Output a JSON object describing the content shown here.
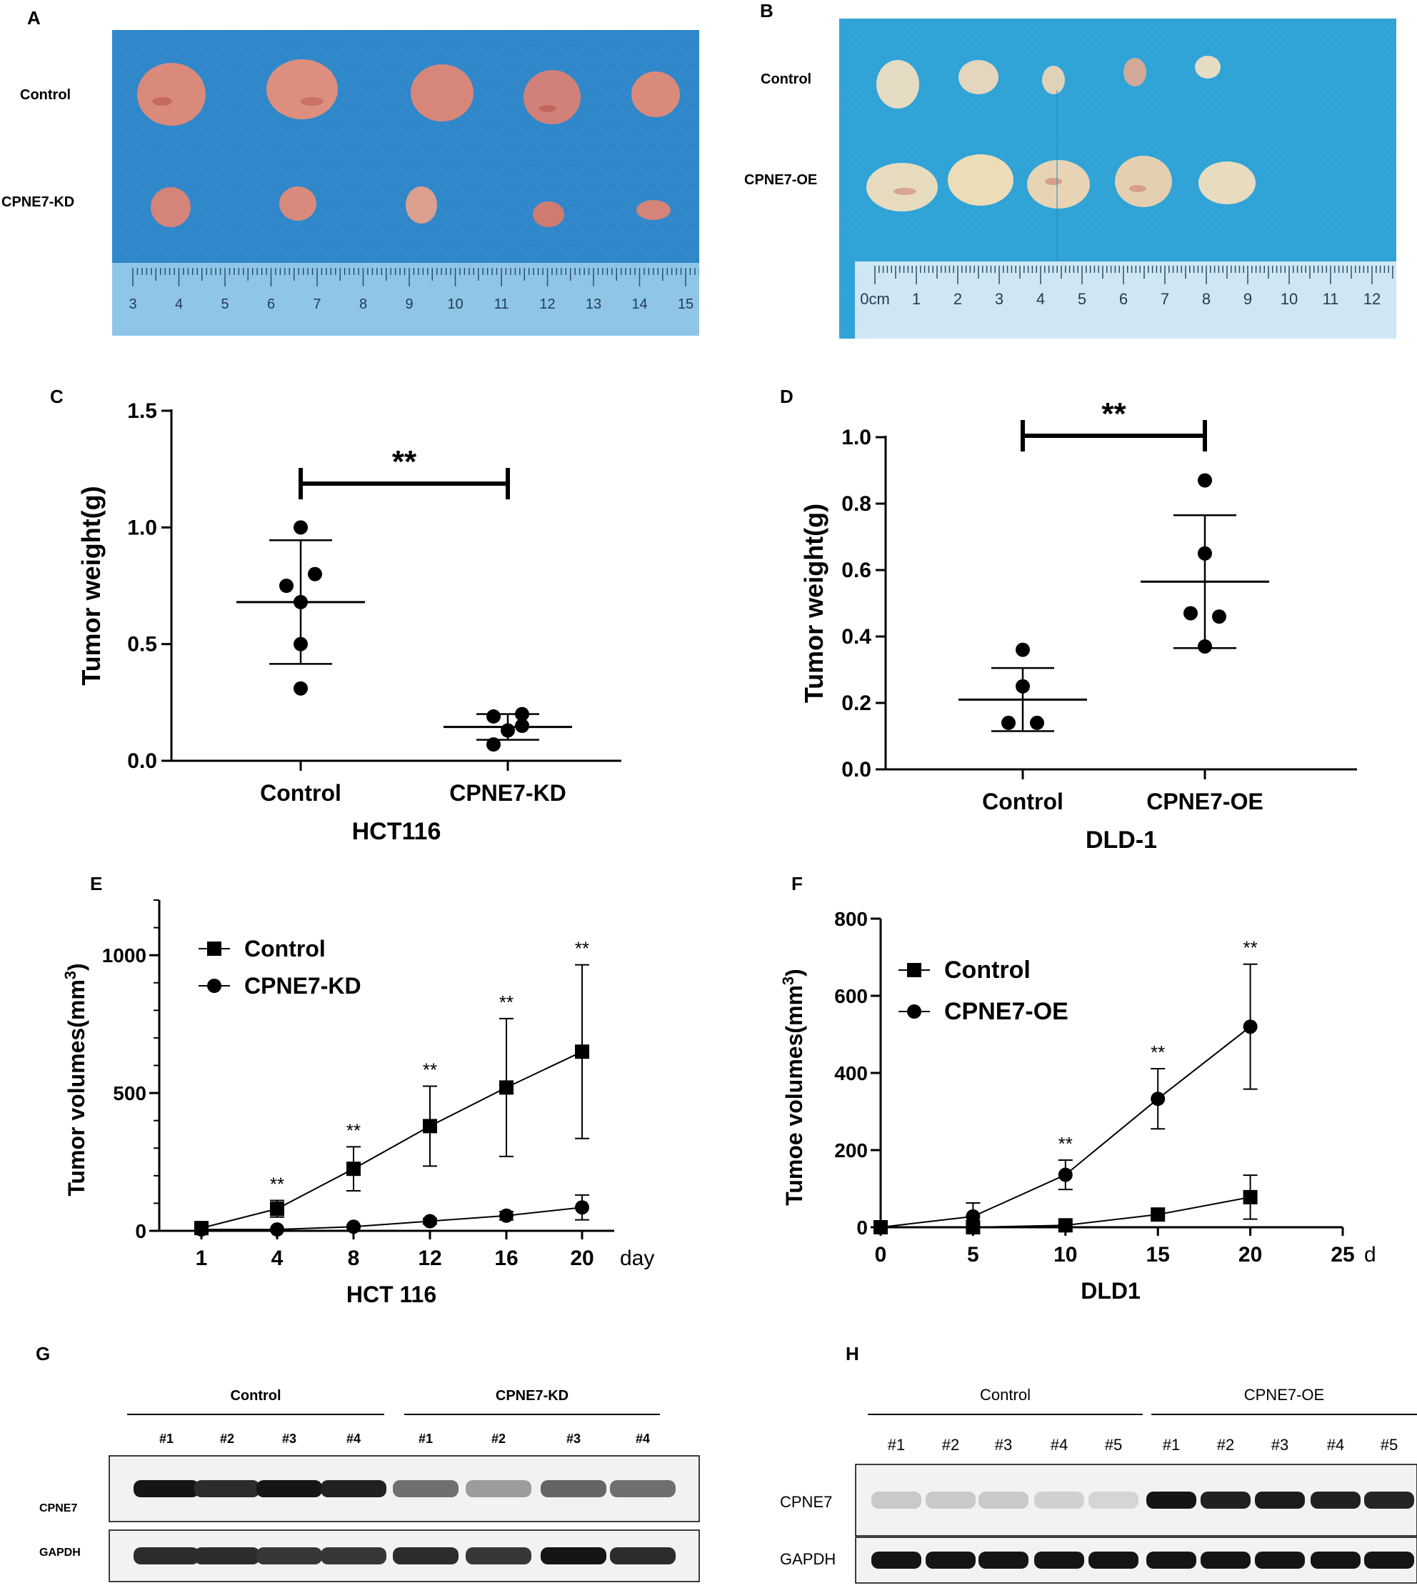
{
  "panels": {
    "A": {
      "label": "A",
      "rows": [
        "Control",
        "CPNE7-KD"
      ],
      "ruler_numbers": [
        "3",
        "4",
        "5",
        "6",
        "7",
        "8",
        "9",
        "10",
        "11",
        "12",
        "13",
        "14",
        "15"
      ],
      "colors": {
        "drape": "#2f86c8",
        "tumor": "#d98a7a",
        "tumor_dark": "#b9554a"
      }
    },
    "B": {
      "label": "B",
      "rows": [
        "Control",
        "CPNE7-OE"
      ],
      "ruler_numbers": [
        "0cm",
        "1",
        "2",
        "3",
        "4",
        "5",
        "6",
        "7",
        "8",
        "9",
        "10",
        "11",
        "12"
      ],
      "colors": {
        "drape": "#2fa2d6",
        "tumor": "#e8dcc0",
        "tumor_dark": "#c7b38e"
      }
    },
    "G": {
      "label": "G",
      "groups": [
        "Control",
        "CPNE7-KD"
      ],
      "lanes": [
        "#1",
        "#2",
        "#3",
        "#4",
        "#1",
        "#2",
        "#3",
        "#4"
      ],
      "bands": [
        "CPNE7",
        "GAPDH"
      ],
      "cpne7_intensity": [
        0.95,
        0.85,
        0.95,
        0.9,
        0.55,
        0.35,
        0.6,
        0.55
      ],
      "gapdh_intensity": [
        0.85,
        0.85,
        0.8,
        0.8,
        0.85,
        0.8,
        0.95,
        0.85
      ]
    },
    "H": {
      "label": "H",
      "groups": [
        "Control",
        "CPNE7-OE"
      ],
      "lanes": [
        "#1",
        "#2",
        "#3",
        "#4",
        "#5",
        "#1",
        "#2",
        "#3",
        "#4",
        "#5"
      ],
      "bands": [
        "CPNE7",
        "GAPDH"
      ],
      "cpne7_intensity": [
        0.15,
        0.15,
        0.15,
        0.12,
        0.1,
        0.95,
        0.9,
        0.92,
        0.9,
        0.88
      ],
      "gapdh_intensity": [
        0.95,
        0.95,
        0.95,
        0.95,
        0.95,
        0.95,
        0.95,
        0.95,
        0.95,
        0.95
      ]
    }
  },
  "chart_data": [
    {
      "id": "C",
      "panel_label": "C",
      "type": "scatter",
      "ylabel": "Tumor weight(g)",
      "xlabel": "HCT116",
      "categories": [
        "Control",
        "CPNE7-KD"
      ],
      "ylim": [
        0,
        1.5
      ],
      "yticks": [
        "0.0",
        "0.5",
        "1.0",
        "1.5"
      ],
      "ytick_values": [
        0,
        0.5,
        1.0,
        1.5
      ],
      "points": [
        [
          0.31,
          0.5,
          0.68,
          0.75,
          0.8,
          1.0
        ],
        [
          0.07,
          0.13,
          0.15,
          0.19,
          0.2
        ]
      ],
      "point_offsets": [
        [
          0,
          0,
          0,
          -1,
          1,
          0
        ],
        [
          -1,
          0,
          1,
          -1,
          1
        ]
      ],
      "means": [
        0.68,
        0.145
      ],
      "sd": [
        0.265,
        0.055
      ],
      "significance": "**"
    },
    {
      "id": "D",
      "panel_label": "D",
      "type": "scatter",
      "ylabel": "Tumor weight(g)",
      "xlabel": "DLD-1",
      "categories": [
        "Control",
        "CPNE7-OE"
      ],
      "ylim": [
        0,
        1.0
      ],
      "yticks": [
        "0.0",
        "0.2",
        "0.4",
        "0.6",
        "0.8",
        "1.0"
      ],
      "ytick_values": [
        0,
        0.2,
        0.4,
        0.6,
        0.8,
        1.0
      ],
      "points": [
        [
          0.14,
          0.14,
          0.25,
          0.36
        ],
        [
          0.37,
          0.46,
          0.47,
          0.65,
          0.87
        ]
      ],
      "point_offsets": [
        [
          -1,
          1,
          0,
          0
        ],
        [
          0,
          1,
          -1,
          0,
          0
        ]
      ],
      "means": [
        0.21,
        0.565
      ],
      "sd": [
        0.095,
        0.2
      ],
      "significance": "**"
    },
    {
      "id": "E",
      "panel_label": "E",
      "type": "line",
      "ylabel": "Tumor volumes(mm",
      "ylabel_sup": "3",
      "ylabel_end": ")",
      "xlabel": "HCT 116",
      "x_unit": "day",
      "x": [
        1,
        4,
        8,
        12,
        16,
        20
      ],
      "xtick_labels": [
        "1",
        "4",
        "8",
        "12",
        "16",
        "20"
      ],
      "yticks": [
        "0",
        "500",
        "1000"
      ],
      "ytick_values": [
        0,
        500,
        1000
      ],
      "ylim": [
        0,
        1200
      ],
      "series": [
        {
          "name": "Control",
          "marker": "square",
          "values": [
            10,
            80,
            225,
            380,
            520,
            650
          ],
          "err": [
            8,
            30,
            80,
            145,
            250,
            315
          ]
        },
        {
          "name": "CPNE7-KD",
          "marker": "circle",
          "values": [
            5,
            5,
            15,
            35,
            55,
            85
          ],
          "err": [
            3,
            3,
            5,
            10,
            15,
            45
          ]
        }
      ],
      "significance": [
        "",
        "**",
        "**",
        "**",
        "**",
        "**"
      ]
    },
    {
      "id": "F",
      "panel_label": "F",
      "type": "line",
      "ylabel": "Tumoe volumes(mm",
      "ylabel_sup": "3",
      "ylabel_end": ")",
      "xlabel": "DLD1",
      "x_unit": "d",
      "x": [
        0,
        5,
        10,
        15,
        20
      ],
      "xtick_labels": [
        "0",
        "5",
        "10",
        "15",
        "20",
        "25"
      ],
      "xtick_values": [
        0,
        5,
        10,
        15,
        20,
        25
      ],
      "yticks": [
        "0",
        "200",
        "400",
        "600",
        "800"
      ],
      "ytick_values": [
        0,
        200,
        400,
        600,
        800
      ],
      "ylim": [
        0,
        800
      ],
      "series": [
        {
          "name": "Control",
          "marker": "square",
          "values": [
            0,
            0,
            5,
            33,
            78
          ],
          "err": [
            0,
            0,
            3,
            5,
            57
          ]
        },
        {
          "name": "CPNE7-OE",
          "marker": "circle",
          "values": [
            0,
            28,
            136,
            333,
            520
          ],
          "err": [
            0,
            35,
            38,
            78,
            162
          ]
        }
      ],
      "significance": [
        "",
        "",
        "**",
        "**",
        "**"
      ]
    }
  ]
}
